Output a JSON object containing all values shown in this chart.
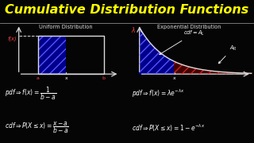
{
  "title": "Cumulative Distribution Functions",
  "title_color": "#FFFF00",
  "title_fontsize": 11.5,
  "bg_color": "#050505",
  "left_subtitle": "Uniform Distribution",
  "right_subtitle": "Exponential Distribution",
  "subtitle_color": "#DDDDDD",
  "subtitle_fontsize": 4.8,
  "handwriting_color": "#FFFFFF",
  "axis_color": "#DDDDDD",
  "red_label_color": "#FF4444",
  "divider_color": "#888888",
  "blue_dark": "#00008B",
  "blue_hatch": "#5555FF",
  "red_dark": "#440000",
  "red_hatch": "#CC2222"
}
